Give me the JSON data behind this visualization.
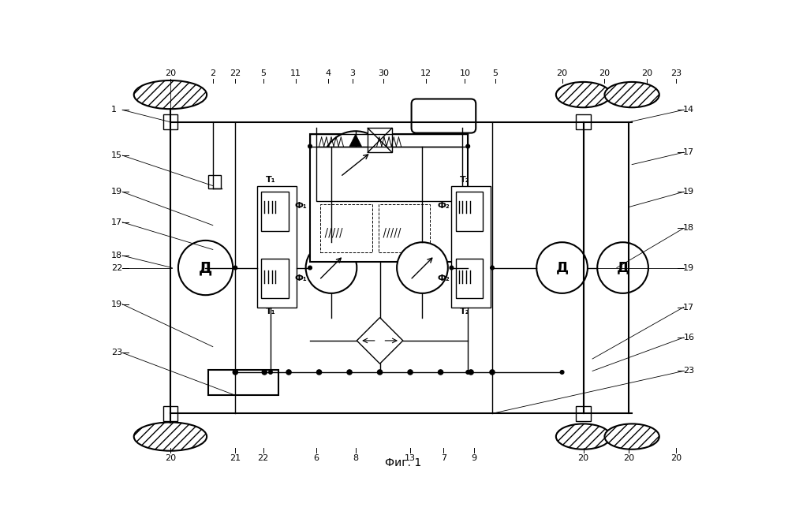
{
  "title": "Фиг. 1",
  "bg_color": "#ffffff",
  "fig_width": 9.99,
  "fig_height": 6.67,
  "dpi": 100,
  "top_labels": [
    [
      0.115,
      " 20"
    ],
    [
      0.185,
      "2"
    ],
    [
      0.225,
      "22"
    ],
    [
      0.265,
      "5"
    ],
    [
      0.32,
      "11"
    ],
    [
      0.375,
      "4"
    ],
    [
      0.41,
      "3"
    ],
    [
      0.465,
      "30"
    ],
    [
      0.535,
      "12"
    ],
    [
      0.6,
      "10"
    ],
    [
      0.655,
      "5"
    ],
    [
      0.72,
      "20"
    ],
    [
      0.81,
      "20"
    ],
    [
      0.88,
      "20"
    ],
    [
      0.945,
      "23"
    ]
  ],
  "bot_labels": [
    [
      0.115,
      "20"
    ],
    [
      0.225,
      "21"
    ],
    [
      0.265,
      "22"
    ],
    [
      0.355,
      "6"
    ],
    [
      0.42,
      "8"
    ],
    [
      0.51,
      "13"
    ],
    [
      0.57,
      "7"
    ],
    [
      0.615,
      "9"
    ],
    [
      0.76,
      "20"
    ],
    [
      0.88,
      "20"
    ],
    [
      0.945,
      "20"
    ]
  ],
  "left_labels": [
    [
      0.12,
      "1"
    ],
    [
      0.22,
      "15"
    ],
    [
      0.31,
      "19"
    ],
    [
      0.36,
      "17"
    ],
    [
      0.43,
      "18"
    ],
    [
      0.52,
      "22"
    ],
    [
      0.6,
      "19"
    ],
    [
      0.68,
      "23"
    ]
  ],
  "right_labels": [
    [
      0.12,
      "14"
    ],
    [
      0.19,
      "17"
    ],
    [
      0.28,
      "19"
    ],
    [
      0.36,
      "18"
    ],
    [
      0.52,
      "19"
    ],
    [
      0.62,
      "17"
    ],
    [
      0.68,
      "16"
    ],
    [
      0.76,
      "23"
    ]
  ]
}
